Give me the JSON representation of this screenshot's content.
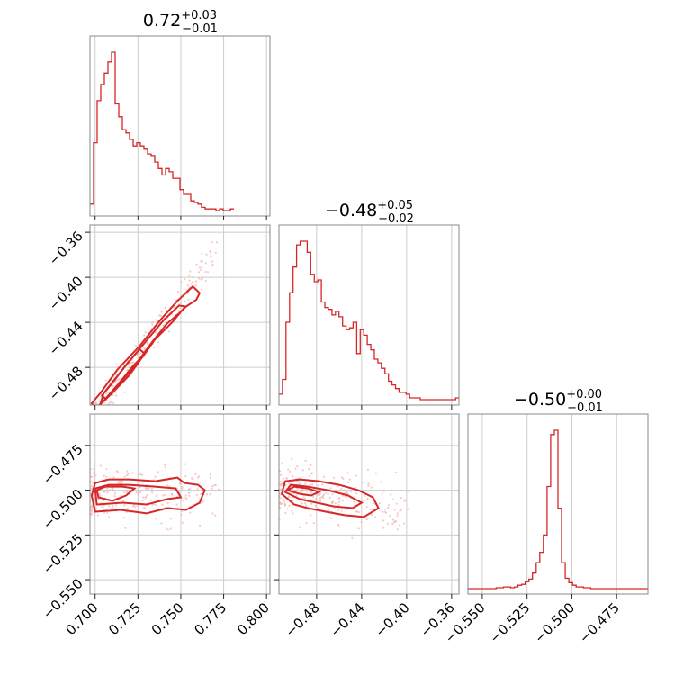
{
  "colors": {
    "accent": "#d62728",
    "fill_dark": "#e77a7b",
    "fill_light": "#f6cfcf",
    "point": "#f3b6b6"
  },
  "chart_data": {
    "type": "corner",
    "parameters": [
      {
        "name": "",
        "title_value": "0.72",
        "title_plus": "+0.03",
        "title_minus": "−0.01",
        "range": [
          0.697,
          0.802
        ],
        "ticks": [
          0.7,
          0.725,
          0.75,
          0.775,
          0.8
        ],
        "tick_labels": [
          "0.700",
          "0.725",
          "0.750",
          "0.775",
          "0.800"
        ],
        "hist_edges_start": 0.697,
        "hist_bin_width": 0.0021,
        "hist_counts": [
          4,
          42,
          68,
          78,
          85,
          92,
          98,
          66,
          58,
          50,
          48,
          44,
          40,
          42,
          40,
          38,
          35,
          34,
          30,
          26,
          22,
          26,
          24,
          20,
          20,
          13,
          10,
          10,
          6,
          5,
          4,
          2,
          1,
          1,
          1,
          0,
          1,
          0,
          0,
          1
        ]
      },
      {
        "name": "",
        "title_value": "−0.48",
        "title_plus": "+0.05",
        "title_minus": "−0.02",
        "range": [
          -0.5135,
          -0.3535
        ],
        "ticks": [
          -0.48,
          -0.44,
          -0.4,
          -0.36
        ],
        "tick_labels": [
          "−0.48",
          "−0.44",
          "−0.40",
          "−0.36"
        ],
        "y_ticks": [
          -0.48,
          -0.44,
          -0.4,
          -0.36
        ],
        "y_tick_labels": [
          "−0.48",
          "−0.44",
          "−0.40",
          "−0.36"
        ],
        "hist_edges_start": -0.5135,
        "hist_bin_width": 0.00314,
        "hist_counts": [
          3,
          11,
          42,
          58,
          72,
          84,
          86,
          86,
          80,
          68,
          64,
          65,
          53,
          50,
          49,
          46,
          48,
          45,
          40,
          38,
          39,
          42,
          25,
          38,
          35,
          30,
          27,
          22,
          20,
          17,
          14,
          10,
          8,
          6,
          4,
          4,
          3,
          1,
          1,
          1,
          0,
          0,
          0,
          0,
          0,
          0,
          0,
          0,
          0,
          0,
          1
        ]
      },
      {
        "name": "",
        "title_value": "−0.50",
        "title_plus": "+0.00",
        "title_minus": "−0.01",
        "range": [
          -0.558,
          -0.4575
        ],
        "ticks": [
          -0.55,
          -0.525,
          -0.5,
          -0.475
        ],
        "tick_labels": [
          "−0.550",
          "−0.525",
          "−0.500",
          "−0.475"
        ],
        "y_ticks": [
          -0.55,
          -0.525,
          -0.5,
          -0.475
        ],
        "y_tick_labels": [
          "−0.550",
          "−0.525",
          "−0.500",
          "−0.475"
        ],
        "hist_edges_start": -0.5585,
        "hist_bin_width": 0.00203,
        "hist_counts": [
          0,
          0,
          0,
          0,
          0,
          0,
          0,
          0,
          1,
          1,
          2,
          2,
          1,
          2,
          4,
          5,
          8,
          11,
          18,
          30,
          42,
          62,
          118,
          178,
          183,
          93,
          30,
          12,
          7,
          4,
          2,
          2,
          1,
          1,
          0,
          0,
          0,
          0,
          0,
          0,
          0,
          0,
          0,
          0,
          0,
          0,
          0,
          0,
          0,
          0
        ]
      }
    ],
    "pairs": [
      {
        "x": 0,
        "y": 1,
        "relation": "linear",
        "slope": 2.0,
        "intercept": -1.92,
        "spread": 0.004,
        "contour_levels": [
          {
            "points": [
              [
                0.7005,
                -0.516
              ],
              [
                0.7085,
                -0.505
              ],
              [
                0.72,
                -0.487
              ],
              [
                0.735,
                -0.455
              ],
              [
                0.745,
                -0.44
              ],
              [
                0.752,
                -0.427
              ],
              [
                0.759,
                -0.42
              ],
              [
                0.761,
                -0.414
              ],
              [
                0.757,
                -0.408
              ],
              [
                0.748,
                -0.421
              ],
              [
                0.738,
                -0.438
              ],
              [
                0.726,
                -0.461
              ],
              [
                0.713,
                -0.482
              ],
              [
                0.703,
                -0.503
              ],
              [
                0.698,
                -0.512
              ]
            ]
          },
          {
            "points": [
              [
                0.703,
                -0.513
              ],
              [
                0.711,
                -0.5
              ],
              [
                0.722,
                -0.481
              ],
              [
                0.733,
                -0.458
              ],
              [
                0.742,
                -0.441
              ],
              [
                0.749,
                -0.432
              ],
              [
                0.753,
                -0.426
              ],
              [
                0.749,
                -0.425
              ],
              [
                0.74,
                -0.438
              ],
              [
                0.729,
                -0.458
              ],
              [
                0.717,
                -0.48
              ],
              [
                0.705,
                -0.503
              ]
            ]
          },
          {
            "points": [
              [
                0.706,
                -0.508
              ],
              [
                0.714,
                -0.494
              ],
              [
                0.722,
                -0.479
              ],
              [
                0.729,
                -0.468
              ],
              [
                0.726,
                -0.464
              ],
              [
                0.719,
                -0.476
              ],
              [
                0.711,
                -0.492
              ],
              [
                0.704,
                -0.505
              ]
            ]
          }
        ]
      },
      {
        "x": 0,
        "y": 2,
        "relation": "flat",
        "center": -0.5025,
        "spread": 0.005,
        "contour_levels": [
          {
            "points": [
              [
                0.7,
                -0.512
              ],
              [
                0.715,
                -0.511
              ],
              [
                0.73,
                -0.513
              ],
              [
                0.742,
                -0.51
              ],
              [
                0.753,
                -0.511
              ],
              [
                0.761,
                -0.507
              ],
              [
                0.764,
                -0.5
              ],
              [
                0.76,
                -0.497
              ],
              [
                0.752,
                -0.496
              ],
              [
                0.748,
                -0.493
              ],
              [
                0.735,
                -0.495
              ],
              [
                0.72,
                -0.494
              ],
              [
                0.708,
                -0.494
              ],
              [
                0.7,
                -0.496
              ],
              [
                0.698,
                -0.503
              ]
            ]
          },
          {
            "points": [
              [
                0.701,
                -0.508
              ],
              [
                0.716,
                -0.507
              ],
              [
                0.73,
                -0.508
              ],
              [
                0.742,
                -0.505
              ],
              [
                0.75,
                -0.504
              ],
              [
                0.747,
                -0.499
              ],
              [
                0.735,
                -0.498
              ],
              [
                0.72,
                -0.497
              ],
              [
                0.708,
                -0.497
              ],
              [
                0.7,
                -0.499
              ]
            ]
          },
          {
            "points": [
              [
                0.702,
                -0.504
              ],
              [
                0.71,
                -0.506
              ],
              [
                0.718,
                -0.503
              ],
              [
                0.723,
                -0.499
              ],
              [
                0.716,
                -0.498
              ],
              [
                0.706,
                -0.498
              ],
              [
                0.701,
                -0.5
              ]
            ]
          }
        ]
      },
      {
        "x": 1,
        "y": 2,
        "relation": "linear",
        "slope": -0.11,
        "intercept": -0.555,
        "spread": 0.005,
        "contour_levels": [
          {
            "points": [
              [
                -0.511,
                -0.502
              ],
              [
                -0.5,
                -0.508
              ],
              [
                -0.488,
                -0.51
              ],
              [
                -0.472,
                -0.512
              ],
              [
                -0.455,
                -0.514
              ],
              [
                -0.438,
                -0.515
              ],
              [
                -0.425,
                -0.51
              ],
              [
                -0.43,
                -0.504
              ],
              [
                -0.443,
                -0.5
              ],
              [
                -0.46,
                -0.497
              ],
              [
                -0.478,
                -0.495
              ],
              [
                -0.495,
                -0.494
              ],
              [
                -0.508,
                -0.495
              ]
            ]
          },
          {
            "points": [
              [
                -0.508,
                -0.501
              ],
              [
                -0.495,
                -0.505
              ],
              [
                -0.48,
                -0.507
              ],
              [
                -0.465,
                -0.509
              ],
              [
                -0.448,
                -0.51
              ],
              [
                -0.44,
                -0.507
              ],
              [
                -0.452,
                -0.503
              ],
              [
                -0.47,
                -0.5
              ],
              [
                -0.488,
                -0.498
              ],
              [
                -0.503,
                -0.497
              ]
            ]
          },
          {
            "points": [
              [
                -0.506,
                -0.5
              ],
              [
                -0.495,
                -0.502
              ],
              [
                -0.485,
                -0.503
              ],
              [
                -0.478,
                -0.501
              ],
              [
                -0.488,
                -0.499
              ],
              [
                -0.5,
                -0.498
              ]
            ]
          }
        ]
      }
    ]
  }
}
